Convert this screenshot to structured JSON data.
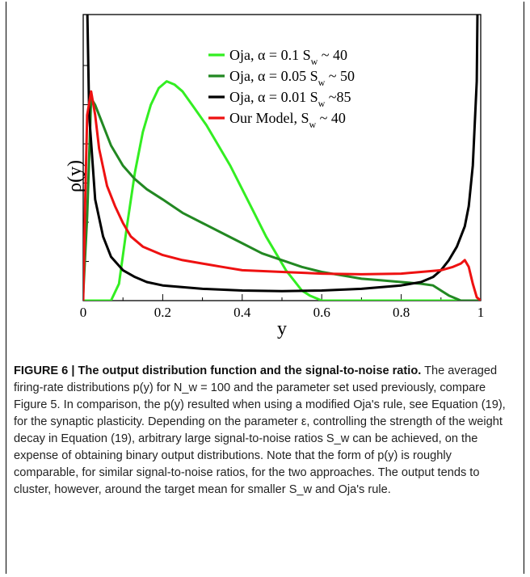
{
  "chart_data": {
    "type": "line",
    "xlabel": "y",
    "ylabel": "ρ(y)",
    "xlim": [
      0,
      1
    ],
    "x_ticks": [
      "0",
      "0.2",
      "0.4",
      "0.6",
      "0.8",
      "1"
    ],
    "legend_position": "top-center",
    "grid": false,
    "series": [
      {
        "name": "Oja, α = 0.1 S_w ~ 40",
        "label_parts": [
          "Oja, α = 0.1 S",
          "w",
          " ~ 40"
        ],
        "color": "#33ee22",
        "x": [
          0,
          0.04,
          0.07,
          0.09,
          0.11,
          0.13,
          0.15,
          0.17,
          0.19,
          0.21,
          0.23,
          0.25,
          0.28,
          0.31,
          0.34,
          0.37,
          0.4,
          0.43,
          0.46,
          0.49,
          0.51,
          0.53,
          0.55,
          0.57,
          0.59,
          0.6,
          0.62,
          0.8,
          1.0
        ],
        "y": [
          0.0,
          0.0,
          0.0,
          0.05,
          0.22,
          0.38,
          0.5,
          0.58,
          0.63,
          0.65,
          0.64,
          0.62,
          0.57,
          0.52,
          0.46,
          0.4,
          0.33,
          0.26,
          0.19,
          0.13,
          0.09,
          0.06,
          0.03,
          0.015,
          0.005,
          0.0,
          0.0,
          0.0,
          0.0
        ]
      },
      {
        "name": "Oja, α = 0.05 S_w ~ 50",
        "label_parts": [
          "Oja, α = 0.05 S",
          "w",
          " ~ 50"
        ],
        "color": "#228822",
        "x": [
          0,
          0.01,
          0.02,
          0.03,
          0.05,
          0.07,
          0.1,
          0.13,
          0.16,
          0.2,
          0.25,
          0.3,
          0.35,
          0.4,
          0.45,
          0.5,
          0.55,
          0.6,
          0.65,
          0.7,
          0.75,
          0.8,
          0.85,
          0.88,
          0.9,
          0.92,
          0.94,
          0.95,
          1.0
        ],
        "y": [
          0.02,
          0.25,
          0.6,
          0.58,
          0.52,
          0.46,
          0.4,
          0.36,
          0.33,
          0.3,
          0.26,
          0.23,
          0.2,
          0.17,
          0.14,
          0.12,
          0.1,
          0.085,
          0.075,
          0.065,
          0.06,
          0.055,
          0.05,
          0.045,
          0.03,
          0.015,
          0.005,
          0.0,
          0.0
        ]
      },
      {
        "name": "Oja, α = 0.01 S_w ~85",
        "label_parts": [
          "Oja, α = 0.01 S",
          "w",
          " ~85"
        ],
        "color": "#000000",
        "x": [
          0,
          0.005,
          0.015,
          0.03,
          0.05,
          0.07,
          0.1,
          0.13,
          0.16,
          0.2,
          0.3,
          0.4,
          0.5,
          0.6,
          0.7,
          0.8,
          0.85,
          0.88,
          0.9,
          0.92,
          0.94,
          0.96,
          0.97,
          0.98,
          0.99,
          0.995,
          1.0
        ],
        "y": [
          2.0,
          1.2,
          0.55,
          0.3,
          0.19,
          0.13,
          0.09,
          0.07,
          0.055,
          0.045,
          0.035,
          0.03,
          0.028,
          0.03,
          0.035,
          0.045,
          0.055,
          0.07,
          0.09,
          0.12,
          0.16,
          0.22,
          0.28,
          0.4,
          0.65,
          1.2,
          2.0
        ]
      },
      {
        "name": "Our Model, S_w ~ 40",
        "label_parts": [
          "Our Model, S",
          "w",
          " ~ 40"
        ],
        "color": "#ee1111",
        "x": [
          0,
          0.005,
          0.01,
          0.02,
          0.03,
          0.04,
          0.06,
          0.08,
          0.1,
          0.12,
          0.15,
          0.2,
          0.25,
          0.3,
          0.35,
          0.4,
          0.5,
          0.6,
          0.7,
          0.8,
          0.85,
          0.9,
          0.93,
          0.95,
          0.96,
          0.97,
          0.98,
          0.99,
          1.0
        ],
        "y": [
          0.0,
          0.3,
          0.55,
          0.62,
          0.55,
          0.45,
          0.34,
          0.28,
          0.23,
          0.19,
          0.16,
          0.135,
          0.12,
          0.11,
          0.1,
          0.09,
          0.085,
          0.08,
          0.078,
          0.08,
          0.085,
          0.09,
          0.1,
          0.11,
          0.12,
          0.1,
          0.05,
          0.01,
          0.0
        ]
      }
    ]
  },
  "caption": {
    "figure_label": "FIGURE 6 | The output distribution function and the signal-to-noise ratio.",
    "text": "The averaged firing-rate distributions p(y) for N_w = 100 and the parameter set used previously, compare Figure 5. In comparison, the p(y) resulted when using a modified Oja's rule, see Equation (19), for the synaptic plasticity. Depending on the parameter ε, controlling the strength of the weight decay in Equation (19), arbitrary large signal-to-noise ratios S_w can be achieved, on the expense of obtaining binary output distributions. Note that the form of p(y) is roughly comparable, for similar signal-to-noise ratios, for the two approaches. The output tends to cluster, however, around the target mean for smaller S_w and Oja's rule."
  }
}
